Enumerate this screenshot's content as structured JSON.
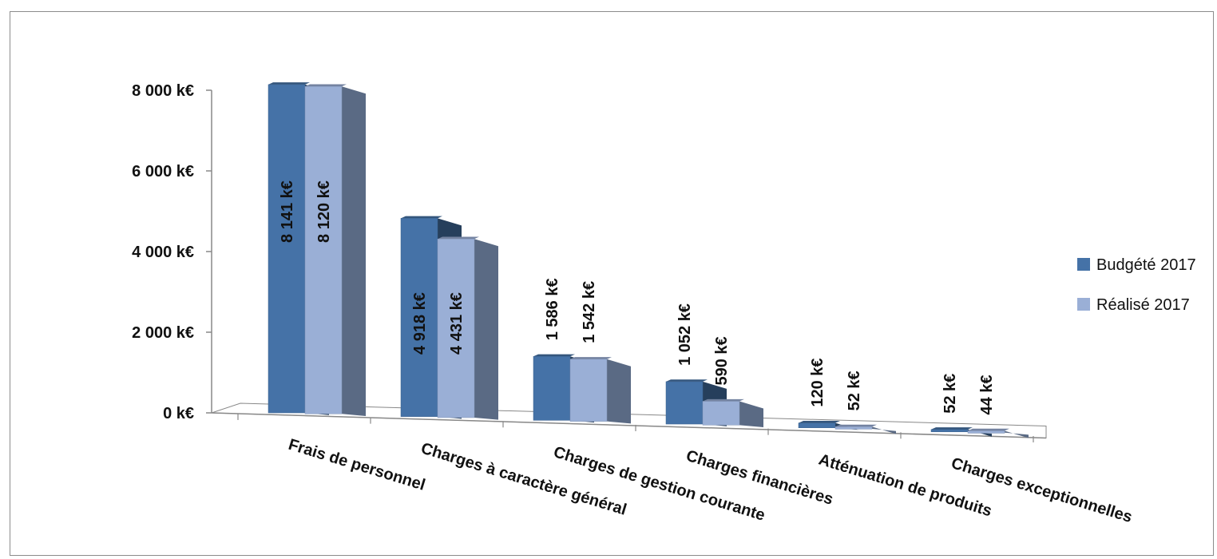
{
  "chart_data": {
    "type": "bar",
    "title": "",
    "xlabel": "",
    "ylabel": "",
    "ylim": [
      0,
      8000
    ],
    "yticks": [
      0,
      2000,
      4000,
      6000,
      8000
    ],
    "ytick_labels": [
      "0 k€",
      "2 000 k€",
      "4 000 k€",
      "6 000 k€",
      "8 000 k€"
    ],
    "categories": [
      "Frais de personnel",
      "Charges à caractère général",
      "Charges de gestion courante",
      "Charges financières",
      "Atténuation de produits",
      "Charges exceptionnelles"
    ],
    "series": [
      {
        "name": "Budgété 2017",
        "color": "#4572A7",
        "values": [
          8141,
          4918,
          1586,
          1052,
          120,
          52
        ],
        "labels": [
          "8 141 k€",
          "4 918 k€",
          "1 586 k€",
          "1 052 k€",
          "120 k€",
          "52 k€"
        ]
      },
      {
        "name": "Réalisé 2017",
        "color": "#9AAFD6",
        "values": [
          8120,
          4431,
          1542,
          590,
          52,
          44
        ],
        "labels": [
          "8 120 k€",
          "4 431 k€",
          "1 542 k€",
          "590 k€",
          "52 k€",
          "44 k€"
        ]
      }
    ],
    "legend": "right",
    "grid": false,
    "style": "3d-clustered-column"
  }
}
